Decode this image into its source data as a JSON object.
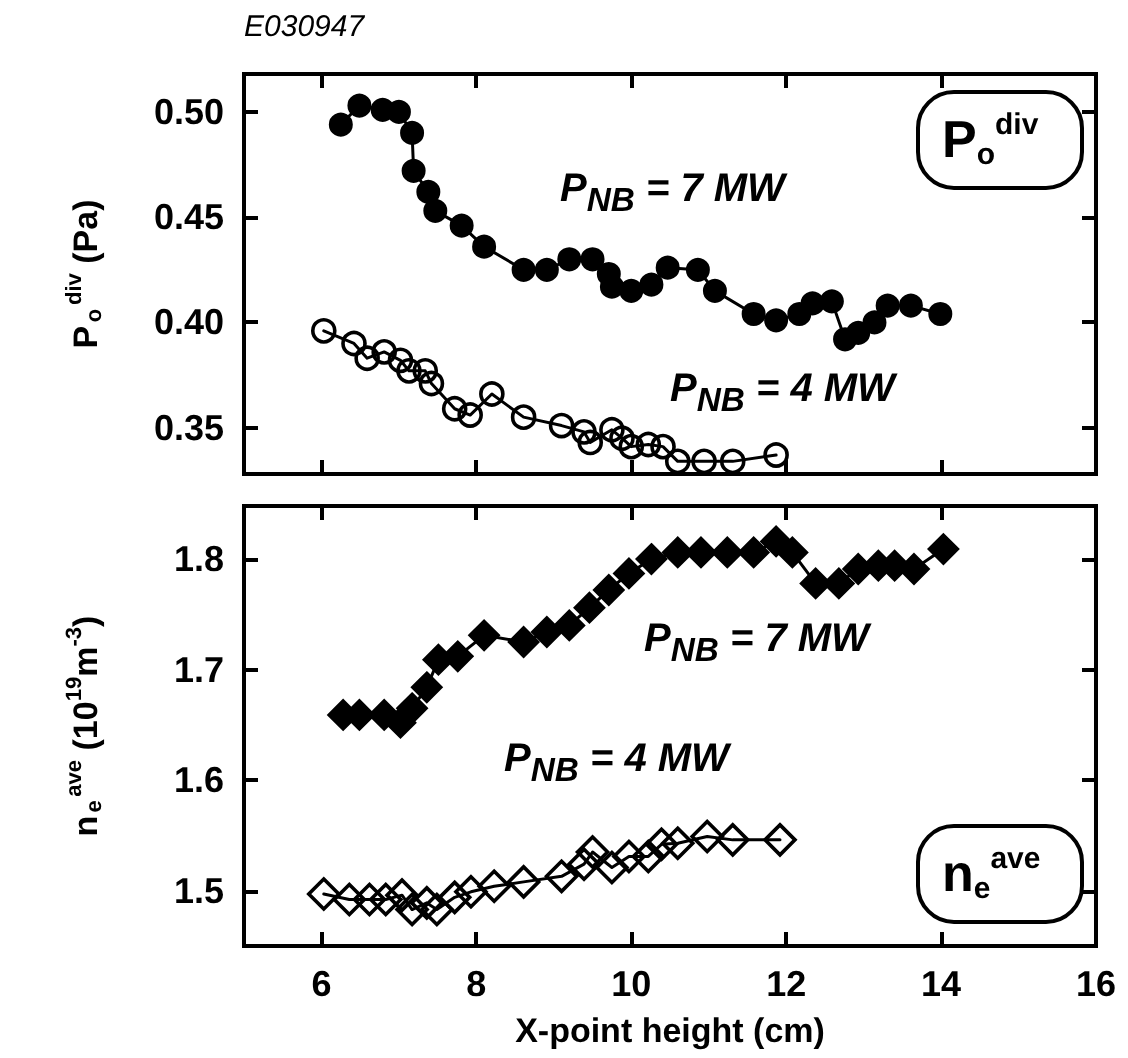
{
  "chart_data": [
    {
      "type": "line",
      "ylabel": "P$_{o}$$^{div}$ (Pa)",
      "xlim": [
        5,
        16
      ],
      "xticks": [
        6,
        8,
        10,
        12,
        14,
        16
      ],
      "ylim": [
        0.328,
        0.518
      ],
      "yticks": [
        {
          "value": 0.35,
          "label": "0.35"
        },
        {
          "value": 0.4,
          "label": "0.40"
        },
        {
          "value": 0.45,
          "label": "0.45"
        },
        {
          "value": 0.5,
          "label": "0.50"
        }
      ],
      "tick_labels": "y",
      "marker": "circle",
      "line_style": "solid",
      "grid": false,
      "annotations": [
        "E030947",
        "P$_{o}$$^{div}$"
      ],
      "series": [
        {
          "name": "P$_{NB}$ = 7 MW",
          "color": "#000000",
          "x": [
            6.25,
            6.49,
            6.79,
            7.0,
            7.17,
            7.19,
            7.38,
            7.47,
            7.81,
            8.1,
            8.61,
            8.91,
            9.2,
            9.5,
            9.71,
            9.75,
            10.0,
            10.26,
            10.47,
            10.86,
            11.08,
            11.58,
            11.87,
            12.17,
            12.34,
            12.59,
            12.76,
            12.93,
            13.14,
            13.31,
            13.61,
            13.99
          ],
          "values": [
            0.494,
            0.503,
            0.501,
            0.5,
            0.49,
            0.472,
            0.462,
            0.453,
            0.446,
            0.436,
            0.425,
            0.425,
            0.43,
            0.43,
            0.423,
            0.417,
            0.415,
            0.418,
            0.426,
            0.425,
            0.415,
            0.404,
            0.401,
            0.404,
            0.409,
            0.41,
            0.392,
            0.395,
            0.4,
            0.408,
            0.408,
            0.404
          ]
        },
        {
          "name": "P$_{NB}$ = 4 MW",
          "color": "#000000",
          "x": [
            6.03,
            6.42,
            6.59,
            6.81,
            7.02,
            7.13,
            7.34,
            7.42,
            7.72,
            7.92,
            8.2,
            8.61,
            9.1,
            9.39,
            9.47,
            9.75,
            9.88,
            10.0,
            10.22,
            10.41,
            10.6,
            10.94,
            11.31,
            11.87
          ],
          "values": [
            0.396,
            0.39,
            0.383,
            0.386,
            0.382,
            0.377,
            0.377,
            0.371,
            0.359,
            0.356,
            0.366,
            0.355,
            0.351,
            0.348,
            0.343,
            0.349,
            0.345,
            0.341,
            0.342,
            0.341,
            0.334,
            0.334,
            0.334,
            0.337
          ]
        }
      ]
    },
    {
      "type": "line",
      "xlabel": "X-point height (cm)",
      "ylabel": "n$_{e}$$^{ave}$ (10$^{19}$m$^{-3}$)",
      "xlim": [
        5,
        16
      ],
      "xticks": [
        6,
        8,
        10,
        12,
        14,
        16
      ],
      "ylim": [
        1.45,
        1.848
      ],
      "yticks": [
        1.5,
        1.6,
        1.7,
        1.8
      ],
      "marker": "diamond",
      "line_style": "solid",
      "grid": false,
      "annotations": [
        "n$_{e}$$^{ave}$"
      ],
      "series": [
        {
          "name": "P$_{NB}$ = 7 MW",
          "color": "#000000",
          "x": [
            6.28,
            6.49,
            6.81,
            7.02,
            7.17,
            7.36,
            7.51,
            7.76,
            8.1,
            8.61,
            8.91,
            9.2,
            9.46,
            9.71,
            9.97,
            10.26,
            10.6,
            10.9,
            11.24,
            11.58,
            11.87,
            12.08,
            12.38,
            12.68,
            12.93,
            13.19,
            13.4,
            13.65,
            14.03
          ],
          "values": [
            1.659,
            1.659,
            1.659,
            1.652,
            1.665,
            1.684,
            1.709,
            1.712,
            1.731,
            1.725,
            1.734,
            1.74,
            1.756,
            1.772,
            1.787,
            1.8,
            1.806,
            1.806,
            1.806,
            1.806,
            1.816,
            1.806,
            1.778,
            1.778,
            1.791,
            1.794,
            1.794,
            1.791,
            1.809
          ]
        },
        {
          "name": "P$_{NB}$ = 4 MW",
          "color": "#000000",
          "x": [
            6.03,
            6.36,
            6.62,
            6.83,
            7.04,
            7.17,
            7.36,
            7.49,
            7.72,
            7.93,
            8.23,
            8.61,
            9.1,
            9.39,
            9.5,
            9.75,
            9.97,
            10.22,
            10.39,
            10.6,
            10.98,
            11.31,
            11.92
          ],
          "values": [
            1.497,
            1.492,
            1.492,
            1.492,
            1.496,
            1.483,
            1.489,
            1.483,
            1.494,
            1.499,
            1.504,
            1.508,
            1.513,
            1.524,
            1.535,
            1.521,
            1.531,
            1.531,
            1.542,
            1.543,
            1.549,
            1.546,
            1.546
          ]
        }
      ]
    }
  ]
}
